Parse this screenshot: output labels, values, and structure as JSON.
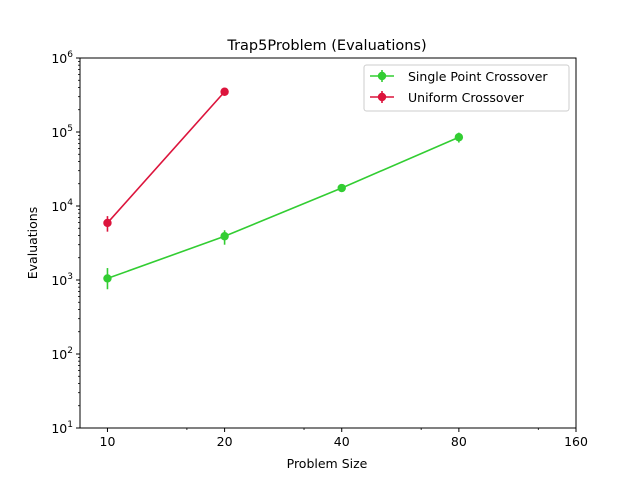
{
  "chart_data": {
    "type": "line",
    "title": "Trap5Problem (Evaluations)",
    "xlabel": "Problem Size",
    "ylabel": "Evaluations",
    "x_scale": "log2",
    "y_scale": "log10",
    "xlim": [
      8.5,
      160
    ],
    "ylim": [
      10,
      1000000
    ],
    "x_ticks": [
      10,
      20,
      40,
      80,
      160
    ],
    "x_tick_labels": [
      "10",
      "20",
      "40",
      "80",
      "160"
    ],
    "y_ticks": [
      10,
      100,
      1000,
      10000,
      100000,
      1000000
    ],
    "y_tick_labels": [
      {
        "base": "10",
        "exp": "1"
      },
      {
        "base": "10",
        "exp": "2"
      },
      {
        "base": "10",
        "exp": "3"
      },
      {
        "base": "10",
        "exp": "4"
      },
      {
        "base": "10",
        "exp": "5"
      },
      {
        "base": "10",
        "exp": "6"
      }
    ],
    "grid": false,
    "legend_position": "top-right",
    "series": [
      {
        "name": "Single Point Crossover",
        "color": "#32cd32",
        "x": [
          10,
          20,
          40,
          80
        ],
        "y": [
          1050,
          3900,
          17500,
          85000
        ],
        "y_low": [
          750,
          3000,
          15500,
          72000
        ],
        "y_high": [
          1450,
          4700,
          19500,
          98000
        ]
      },
      {
        "name": "Uniform Crossover",
        "color": "#dc143c",
        "x": [
          10,
          20
        ],
        "y": [
          5900,
          350000
        ],
        "y_low": [
          4500,
          325000
        ],
        "y_high": [
          7300,
          385000
        ]
      }
    ]
  }
}
